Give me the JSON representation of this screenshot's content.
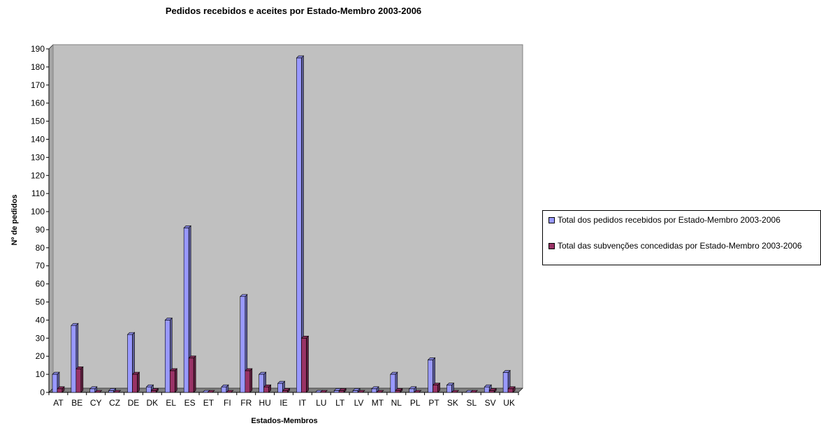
{
  "chart_data": {
    "type": "bar",
    "title": "Pedidos recebidos e aceites por Estado-Membro 2003-2006",
    "xlabel": "Estados-Membros",
    "ylabel": "Nº de pedidos",
    "ylim": [
      0,
      190
    ],
    "y_ticks": [
      "0",
      "10",
      "20",
      "30",
      "40",
      "50",
      "60",
      "70",
      "80",
      "90",
      "100",
      "110",
      "120",
      "130",
      "140",
      "150",
      "160",
      "170",
      "180",
      "190"
    ],
    "categories": [
      "AT",
      "BE",
      "CY",
      "CZ",
      "DE",
      "DK",
      "EL",
      "ES",
      "ET",
      "FI",
      "FR",
      "HU",
      "IE",
      "IT",
      "LU",
      "LT",
      "LV",
      "MT",
      "NL",
      "PL",
      "PT",
      "SK",
      "SL",
      "SV",
      "UK"
    ],
    "series": [
      {
        "name": "Total dos pedidos recebidos por Estado-Membro 2003-2006",
        "color": "#9999ff",
        "values": [
          10,
          37,
          2,
          1,
          32,
          3,
          40,
          91,
          0,
          3,
          53,
          10,
          5,
          185,
          0,
          1,
          1,
          2,
          10,
          2,
          18,
          4,
          0,
          3,
          11
        ]
      },
      {
        "name": "Total das subvenções concedidas por Estado-Membro 2003-2006",
        "color": "#993366",
        "values": [
          2,
          13,
          0,
          0,
          10,
          1,
          12,
          19,
          0,
          0,
          12,
          3,
          1,
          30,
          0,
          1,
          0,
          0,
          1,
          0,
          4,
          0,
          0,
          1,
          2
        ]
      }
    ],
    "grid": false,
    "legend_position": "right",
    "plot_background": "#c0c0c0"
  }
}
